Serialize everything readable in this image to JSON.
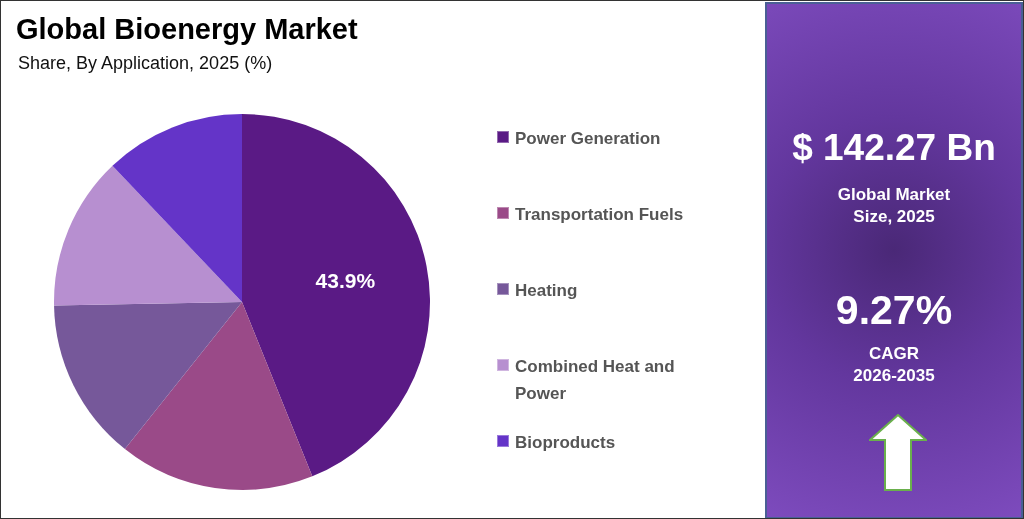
{
  "chart_data": [
    {
      "type": "pie",
      "title": "Global Bioenergy Market",
      "subtitle": "Share, By Application, 2025 (%)",
      "categories": [
        "Power Generation",
        "Transportation Fuels",
        "Heating",
        "Combined Heat and Power",
        "Bioproducts"
      ],
      "values": [
        43.9,
        16.8,
        14.0,
        13.2,
        12.1
      ],
      "colors": [
        "#5a1a85",
        "#9a4a88",
        "#76589a",
        "#b78fd0",
        "#6434c8"
      ],
      "value_labels": [
        "43.9%",
        null,
        null,
        null,
        null
      ],
      "legend": "right"
    },
    {
      "type": "other",
      "annotations": [
        "$ 142.27 Bn",
        "Global Market Size, 2025",
        "9.27%",
        "CAGR 2026-2035"
      ]
    }
  ]
}
